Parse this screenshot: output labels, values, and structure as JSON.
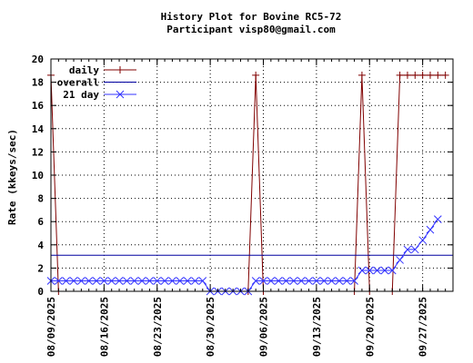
{
  "chart_data": {
    "type": "line",
    "title": "History Plot for Bovine RC5-72",
    "subtitle": "Participant visp80@gmail.com",
    "ylabel": "Rate (kkeys/sec)",
    "xlabel": "",
    "ylim": [
      0,
      20
    ],
    "yticks": [
      "0",
      "2",
      "4",
      "6",
      "8",
      "10",
      "12",
      "14",
      "16",
      "18",
      "20"
    ],
    "x_start": "2025-08-09",
    "x_end": "2025-10-01",
    "xticks": [
      "08/09/2025",
      "08/16/2025",
      "08/23/2025",
      "08/30/2025",
      "09/06/2025",
      "09/13/2025",
      "09/20/2025",
      "09/27/2025"
    ],
    "grid": true,
    "legend_position": "top-left",
    "series": [
      {
        "name": "daily",
        "color": "#800000",
        "marker": "plus",
        "points": [
          [
            "2025-08-09",
            18.6
          ],
          [
            "2025-08-10",
            0
          ],
          [
            "2025-09-04",
            0
          ],
          [
            "2025-09-05",
            18.6
          ],
          [
            "2025-09-06",
            0
          ],
          [
            "2025-09-18",
            0
          ],
          [
            "2025-09-19",
            18.6
          ],
          [
            "2025-09-20",
            0
          ],
          [
            "2025-09-23",
            0
          ],
          [
            "2025-09-24",
            18.6
          ],
          [
            "2025-09-25",
            18.6
          ],
          [
            "2025-09-26",
            18.6
          ],
          [
            "2025-09-27",
            18.6
          ],
          [
            "2025-09-28",
            18.6
          ],
          [
            "2025-09-29",
            18.6
          ],
          [
            "2025-09-30",
            18.6
          ]
        ]
      },
      {
        "name": "overall",
        "color": "#0000a0",
        "marker": "none",
        "points": [
          [
            "2025-08-09",
            3.1
          ],
          [
            "2025-10-01",
            3.1
          ]
        ]
      },
      {
        "name": "21 day",
        "color": "#3333ff",
        "marker": "x",
        "points": [
          [
            "2025-08-09",
            0.9
          ],
          [
            "2025-08-10",
            0.9
          ],
          [
            "2025-08-11",
            0.9
          ],
          [
            "2025-08-12",
            0.9
          ],
          [
            "2025-08-13",
            0.9
          ],
          [
            "2025-08-14",
            0.9
          ],
          [
            "2025-08-15",
            0.9
          ],
          [
            "2025-08-16",
            0.9
          ],
          [
            "2025-08-17",
            0.9
          ],
          [
            "2025-08-18",
            0.9
          ],
          [
            "2025-08-19",
            0.9
          ],
          [
            "2025-08-20",
            0.9
          ],
          [
            "2025-08-21",
            0.9
          ],
          [
            "2025-08-22",
            0.9
          ],
          [
            "2025-08-23",
            0.9
          ],
          [
            "2025-08-24",
            0.9
          ],
          [
            "2025-08-25",
            0.9
          ],
          [
            "2025-08-26",
            0.9
          ],
          [
            "2025-08-27",
            0.9
          ],
          [
            "2025-08-28",
            0.9
          ],
          [
            "2025-08-29",
            0.9
          ],
          [
            "2025-08-30",
            0
          ],
          [
            "2025-08-31",
            0
          ],
          [
            "2025-09-01",
            0
          ],
          [
            "2025-09-02",
            0
          ],
          [
            "2025-09-03",
            0
          ],
          [
            "2025-09-04",
            0
          ],
          [
            "2025-09-05",
            0.9
          ],
          [
            "2025-09-06",
            0.9
          ],
          [
            "2025-09-07",
            0.9
          ],
          [
            "2025-09-08",
            0.9
          ],
          [
            "2025-09-09",
            0.9
          ],
          [
            "2025-09-10",
            0.9
          ],
          [
            "2025-09-11",
            0.9
          ],
          [
            "2025-09-12",
            0.9
          ],
          [
            "2025-09-13",
            0.9
          ],
          [
            "2025-09-14",
            0.9
          ],
          [
            "2025-09-15",
            0.9
          ],
          [
            "2025-09-16",
            0.9
          ],
          [
            "2025-09-17",
            0.9
          ],
          [
            "2025-09-18",
            0.9
          ],
          [
            "2025-09-19",
            1.8
          ],
          [
            "2025-09-20",
            1.8
          ],
          [
            "2025-09-21",
            1.8
          ],
          [
            "2025-09-22",
            1.8
          ],
          [
            "2025-09-23",
            1.8
          ],
          [
            "2025-09-24",
            2.7
          ],
          [
            "2025-09-25",
            3.6
          ],
          [
            "2025-09-26",
            3.6
          ],
          [
            "2025-09-27",
            4.4
          ],
          [
            "2025-09-28",
            5.3
          ],
          [
            "2025-09-29",
            6.2
          ]
        ]
      }
    ]
  }
}
